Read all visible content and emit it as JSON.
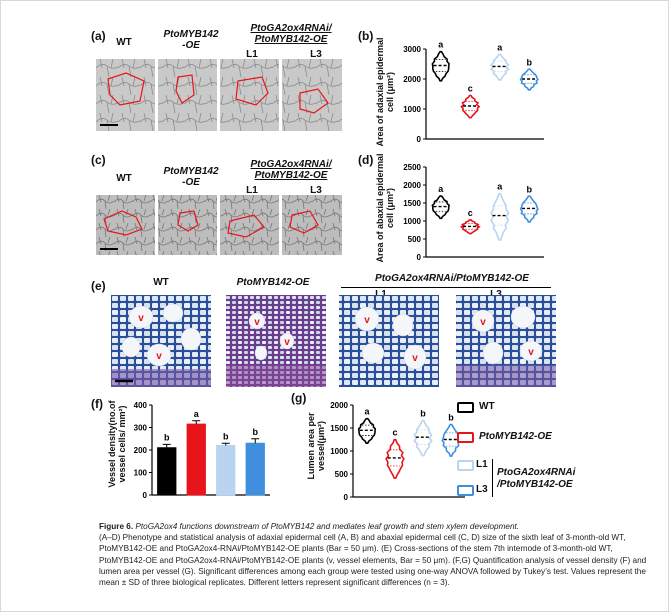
{
  "panels": {
    "a": {
      "letter": "(a)",
      "labels": [
        "WT",
        "PtoMYB142\n-OE",
        "PtoGA2ox4RNAi/\nPtoMYB142-OE",
        "L1",
        "L3"
      ]
    },
    "b": {
      "letter": "(b)"
    },
    "c": {
      "letter": "(c)",
      "labels": [
        "WT",
        "PtoMYB142\n-OE",
        "PtoGA2ox4RNAi/\nPtoMYB142-OE",
        "L1",
        "L3"
      ]
    },
    "d": {
      "letter": "(d)"
    },
    "e": {
      "letter": "(e)",
      "labels": [
        "WT",
        "PtoMYB142-OE",
        "PtoGA2ox4RNAi/PtoMYB142-OE",
        "L1",
        "L3"
      ],
      "vessel_mark": "v"
    },
    "f": {
      "letter": "(f)"
    },
    "g": {
      "letter": "(g)"
    }
  },
  "colors": {
    "wt": "#000000",
    "oe": "#e8141b",
    "l1": "#b8d4f0",
    "l3": "#3f8fde",
    "red_outline": "#e8141b"
  },
  "chart_data": [
    {
      "panel": "b",
      "type": "violin",
      "ylabel": "Area of adaxial epidermal cell (μm²)",
      "ylim": [
        0,
        3000
      ],
      "yticks": [
        0,
        1000,
        2000,
        3000
      ],
      "groups": [
        "WT",
        "PtoMYB142-OE",
        "L1",
        "L3"
      ],
      "medians": [
        2450,
        1100,
        2420,
        2000
      ],
      "letters": [
        "a",
        "c",
        "a",
        "b"
      ]
    },
    {
      "panel": "d",
      "type": "violin",
      "ylabel": "Area of abaxial epidermal cell (μm²)",
      "ylim": [
        0,
        2500
      ],
      "yticks": [
        0,
        500,
        1000,
        1500,
        2000,
        2500
      ],
      "groups": [
        "WT",
        "PtoMYB142-OE",
        "L1",
        "L3"
      ],
      "medians": [
        1400,
        850,
        1150,
        1350
      ],
      "letters": [
        "a",
        "c",
        "a",
        "b"
      ]
    },
    {
      "panel": "f",
      "type": "bar",
      "ylabel": "Vessel density(no.of vessel cells/ mm²)",
      "ylim": [
        0,
        400
      ],
      "yticks": [
        0,
        100,
        200,
        300,
        400
      ],
      "groups": [
        "WT",
        "PtoMYB142-OE",
        "L1",
        "L3"
      ],
      "values": [
        210,
        315,
        220,
        230
      ],
      "errors": [
        15,
        15,
        10,
        20
      ],
      "letters": [
        "b",
        "a",
        "b",
        "b"
      ]
    },
    {
      "panel": "g",
      "type": "violin",
      "ylabel": "Lumen area per vessel(μm²)",
      "ylim": [
        0,
        2000
      ],
      "yticks": [
        0,
        500,
        1000,
        1500,
        2000
      ],
      "groups": [
        "WT",
        "PtoMYB142-OE",
        "L1",
        "L3"
      ],
      "medians": [
        1450,
        850,
        1300,
        1250
      ],
      "letters": [
        "a",
        "c",
        "b",
        "b"
      ]
    }
  ],
  "legend": {
    "items": [
      "WT",
      "PtoMYB142-OE",
      "L1",
      "L3"
    ],
    "bracket_label": "PtoGA2ox4RNAi\n/PtoMYB142-OE"
  },
  "caption": {
    "title": "Figure 6.",
    "title_text": "PtoGA2ox4 functions downstream of PtoMYB142 and mediates leaf growth and stem xylem development.",
    "body": "(A–D) Phenotype and statistical analysis of adaxial epidermal cell (A, B) and abaxial epidermal cell (C, D) size of the sixth leaf of 3-month-old WT, PtoMYB142-OE and PtoGA2ox4-RNAi/PtoMYB142-OE plants (Bar = 50 μm). (E) Cross-sections of the stem 7th internode of 3-month-old WT, PtoMYB142-OE and PtoGA2ox4-RNAi/PtoMYB142-OE plants (v, vessel elements, Bar = 50 μm). (F,G) Quantification analysis of vessel density (F) and lumen area per vessel (G). Significant differences among each group were tested using one-way ANOVA followed by Tukey’s test. Values represent the mean ± SD of three biological replicates. Different letters represent significant differences (n = 3)."
  }
}
